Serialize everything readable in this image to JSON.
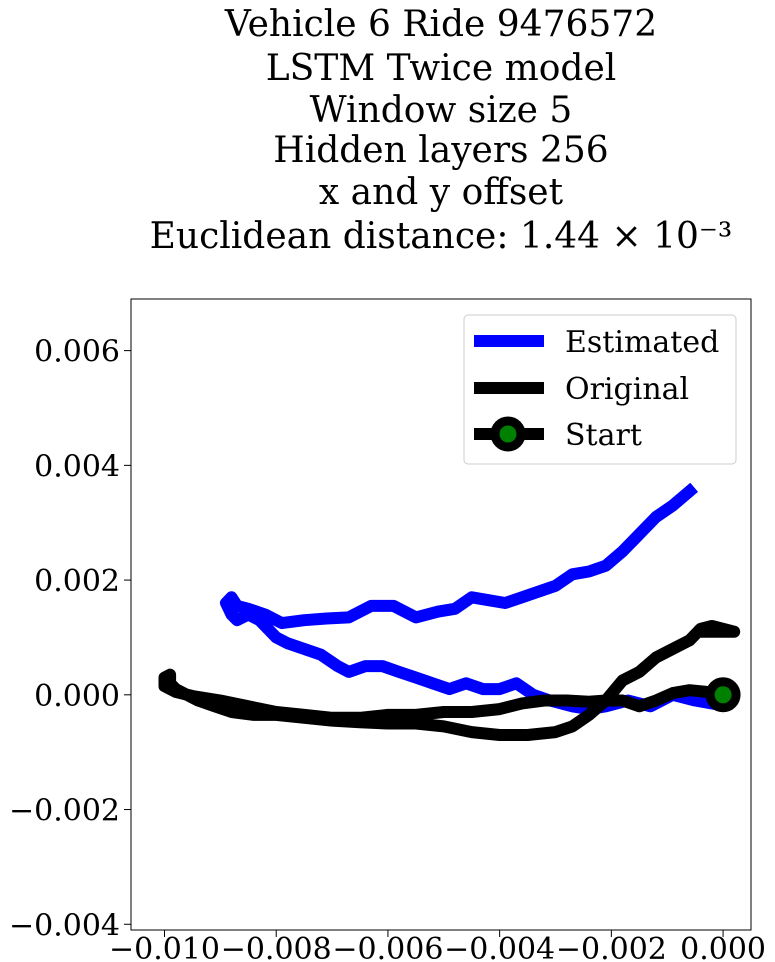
{
  "chart_data": {
    "type": "line",
    "title_lines": [
      "Vehicle 6 Ride 9476572",
      "LSTM Twice model",
      "Window size 5",
      "Hidden layers 256",
      "x and y offset",
      "Euclidean distance: 1.44 × 10⁻³"
    ],
    "xlabel": "",
    "ylabel": "",
    "xlim": [
      -0.0106,
      0.0005
    ],
    "ylim": [
      -0.0041,
      0.0069
    ],
    "x_ticks": [
      -0.01,
      -0.008,
      -0.006,
      -0.004,
      -0.002,
      0.0
    ],
    "x_tick_labels": [
      "−0.010",
      "−0.008",
      "−0.006",
      "−0.004",
      "−0.002",
      "0.000"
    ],
    "y_ticks": [
      -0.004,
      -0.002,
      0.0,
      0.002,
      0.004,
      0.006
    ],
    "y_tick_labels": [
      "−0.004",
      "−0.002",
      "0.000",
      "0.002",
      "0.004",
      "0.006"
    ],
    "grid": false,
    "legend_position": "upper right",
    "series": [
      {
        "name": "Estimated",
        "color": "#0000ff",
        "points": [
          [
            -0.0002,
            -0.00015
          ],
          [
            -0.0005,
            -0.0001
          ],
          [
            -0.0009,
            0.0
          ],
          [
            -0.0013,
            -0.0002
          ],
          [
            -0.0017,
            -0.0001
          ],
          [
            -0.0021,
            -0.0002
          ],
          [
            -0.0024,
            -0.00025
          ],
          [
            -0.0027,
            -0.0002
          ],
          [
            -0.0031,
            -0.0001
          ],
          [
            -0.0034,
            0.0
          ],
          [
            -0.0037,
            0.0002
          ],
          [
            -0.004,
            0.0001
          ],
          [
            -0.0043,
            0.0001
          ],
          [
            -0.0046,
            0.0002
          ],
          [
            -0.0049,
            0.0001
          ],
          [
            -0.0052,
            0.0002
          ],
          [
            -0.0055,
            0.0003
          ],
          [
            -0.0058,
            0.0004
          ],
          [
            -0.0061,
            0.0005
          ],
          [
            -0.0064,
            0.0005
          ],
          [
            -0.0067,
            0.0004
          ],
          [
            -0.0069,
            0.0005
          ],
          [
            -0.0072,
            0.0007
          ],
          [
            -0.0075,
            0.0008
          ],
          [
            -0.0078,
            0.0009
          ],
          [
            -0.008,
            0.001
          ],
          [
            -0.0083,
            0.0013
          ],
          [
            -0.0085,
            0.0014
          ],
          [
            -0.0087,
            0.0013
          ],
          [
            -0.0088,
            0.0014
          ],
          [
            -0.0089,
            0.0016
          ],
          [
            -0.0088,
            0.0017
          ],
          [
            -0.0087,
            0.00155
          ],
          [
            -0.0085,
            0.0015
          ],
          [
            -0.0082,
            0.0014
          ],
          [
            -0.0079,
            0.00125
          ],
          [
            -0.0075,
            0.0013
          ],
          [
            -0.0071,
            0.00133
          ],
          [
            -0.0067,
            0.00135
          ],
          [
            -0.0063,
            0.00155
          ],
          [
            -0.0059,
            0.00155
          ],
          [
            -0.0055,
            0.00135
          ],
          [
            -0.0051,
            0.00145
          ],
          [
            -0.0048,
            0.0015
          ],
          [
            -0.0045,
            0.0017
          ],
          [
            -0.0042,
            0.00165
          ],
          [
            -0.0039,
            0.0016
          ],
          [
            -0.0036,
            0.0017
          ],
          [
            -0.0033,
            0.0018
          ],
          [
            -0.003,
            0.0019
          ],
          [
            -0.0027,
            0.0021
          ],
          [
            -0.0024,
            0.00215
          ],
          [
            -0.0021,
            0.00225
          ],
          [
            -0.0018,
            0.0025
          ],
          [
            -0.0015,
            0.0028
          ],
          [
            -0.0012,
            0.0031
          ],
          [
            -0.0009,
            0.0033
          ],
          [
            -0.0006,
            0.00355
          ]
        ]
      },
      {
        "name": "Original",
        "color": "#000000",
        "points": [
          [
            0.0,
            0.0
          ],
          [
            -0.0003,
            5e-05
          ],
          [
            -0.0006,
            8e-05
          ],
          [
            -0.0009,
            3e-05
          ],
          [
            -0.0012,
            -0.0001
          ],
          [
            -0.0015,
            -0.0002
          ],
          [
            -0.0018,
            -0.0001
          ],
          [
            -0.0021,
            -0.0001
          ],
          [
            -0.0024,
            -0.00012
          ],
          [
            -0.0028,
            -0.0001
          ],
          [
            -0.0032,
            -0.0001
          ],
          [
            -0.0036,
            -0.00015
          ],
          [
            -0.004,
            -0.00025
          ],
          [
            -0.0045,
            -0.0003
          ],
          [
            -0.005,
            -0.0003
          ],
          [
            -0.0055,
            -0.00035
          ],
          [
            -0.006,
            -0.00035
          ],
          [
            -0.0065,
            -0.0004
          ],
          [
            -0.007,
            -0.0004
          ],
          [
            -0.0075,
            -0.00035
          ],
          [
            -0.008,
            -0.0003
          ],
          [
            -0.0085,
            -0.0002
          ],
          [
            -0.009,
            -0.0001
          ],
          [
            -0.0095,
            -2e-05
          ],
          [
            -0.0098,
            5e-05
          ],
          [
            -0.01,
            0.00015
          ],
          [
            -0.01,
            0.0003
          ],
          [
            -0.0099,
            0.00035
          ],
          [
            -0.0099,
            0.0002
          ],
          [
            -0.0098,
            0.0001
          ],
          [
            -0.0096,
            0.0
          ],
          [
            -0.0094,
            -0.0001
          ],
          [
            -0.0091,
            -0.0002
          ],
          [
            -0.0088,
            -0.0003
          ],
          [
            -0.0084,
            -0.00035
          ],
          [
            -0.008,
            -0.00035
          ],
          [
            -0.0075,
            -0.0004
          ],
          [
            -0.007,
            -0.00045
          ],
          [
            -0.0065,
            -0.00048
          ],
          [
            -0.006,
            -0.0005
          ],
          [
            -0.0055,
            -0.0005
          ],
          [
            -0.005,
            -0.00055
          ],
          [
            -0.0045,
            -0.00065
          ],
          [
            -0.004,
            -0.0007
          ],
          [
            -0.0035,
            -0.0007
          ],
          [
            -0.003,
            -0.00065
          ],
          [
            -0.0027,
            -0.00055
          ],
          [
            -0.0024,
            -0.00035
          ],
          [
            -0.0021,
            -0.0001
          ],
          [
            -0.0018,
            0.00025
          ],
          [
            -0.0015,
            0.0004
          ],
          [
            -0.0012,
            0.00065
          ],
          [
            -0.0009,
            0.0008
          ],
          [
            -0.0006,
            0.00095
          ],
          [
            -0.0004,
            0.00115
          ],
          [
            -0.0002,
            0.0012
          ],
          [
            0.0,
            0.00115
          ],
          [
            0.0002,
            0.0011
          ],
          [
            -0.0004,
            0.0011
          ]
        ]
      }
    ],
    "start_point": {
      "name": "Start",
      "x": 0.0,
      "y": 0.0,
      "marker_fill": "#008000",
      "marker_edge": "#000000"
    },
    "legend": [
      {
        "label": "Estimated",
        "color": "#0000ff",
        "marker": false
      },
      {
        "label": "Original",
        "color": "#000000",
        "marker": false
      },
      {
        "label": "Start",
        "color": "#000000",
        "marker": true
      }
    ]
  }
}
